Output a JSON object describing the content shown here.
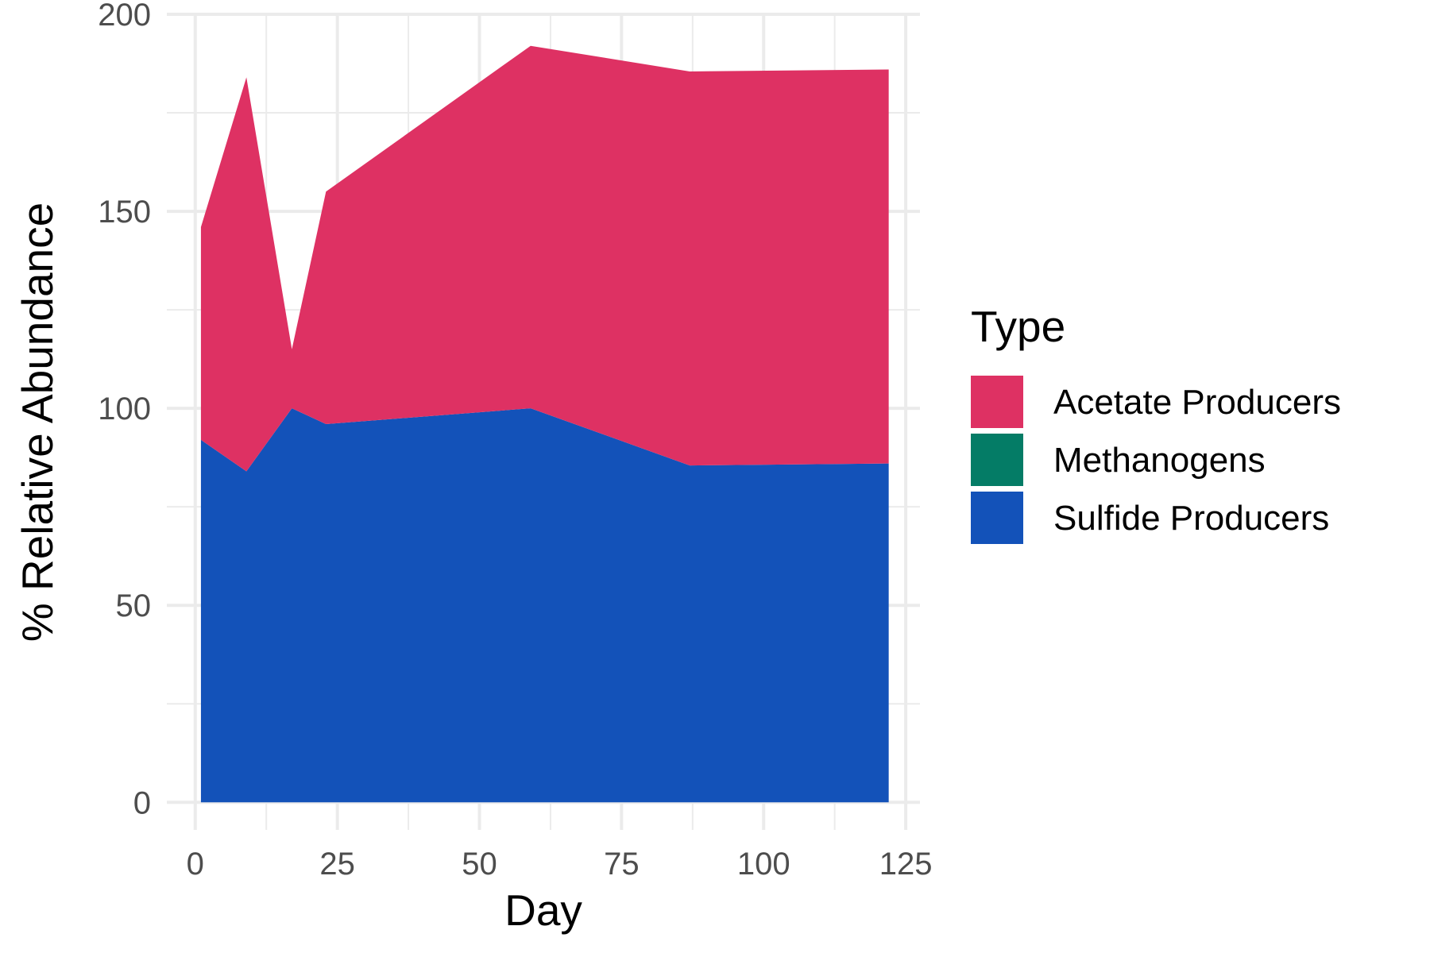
{
  "chart_data": {
    "type": "area",
    "stacked": true,
    "xlabel": "Day",
    "ylabel": "% Relative Abundance",
    "xlim": [
      -5,
      127.5
    ],
    "ylim": [
      -7,
      200
    ],
    "x_ticks": [
      0,
      25,
      50,
      75,
      100,
      125
    ],
    "y_ticks": [
      0,
      50,
      100,
      150,
      200
    ],
    "grid": true,
    "legend": {
      "title": "Type",
      "position": "right"
    },
    "x": [
      1,
      9,
      17,
      23,
      59,
      87,
      122
    ],
    "series": [
      {
        "name": "Acetate Producers",
        "color": "#DE3163",
        "values": [
          54,
          100,
          15,
          59,
          92,
          100,
          100
        ]
      },
      {
        "name": "Methanogens",
        "color": "#047C66",
        "values": [
          0,
          0,
          0,
          0,
          0,
          0,
          0
        ]
      },
      {
        "name": "Sulfide Producers",
        "color": "#1352B9",
        "values": [
          92,
          84,
          100,
          96,
          100,
          85.5,
          86
        ]
      }
    ]
  }
}
